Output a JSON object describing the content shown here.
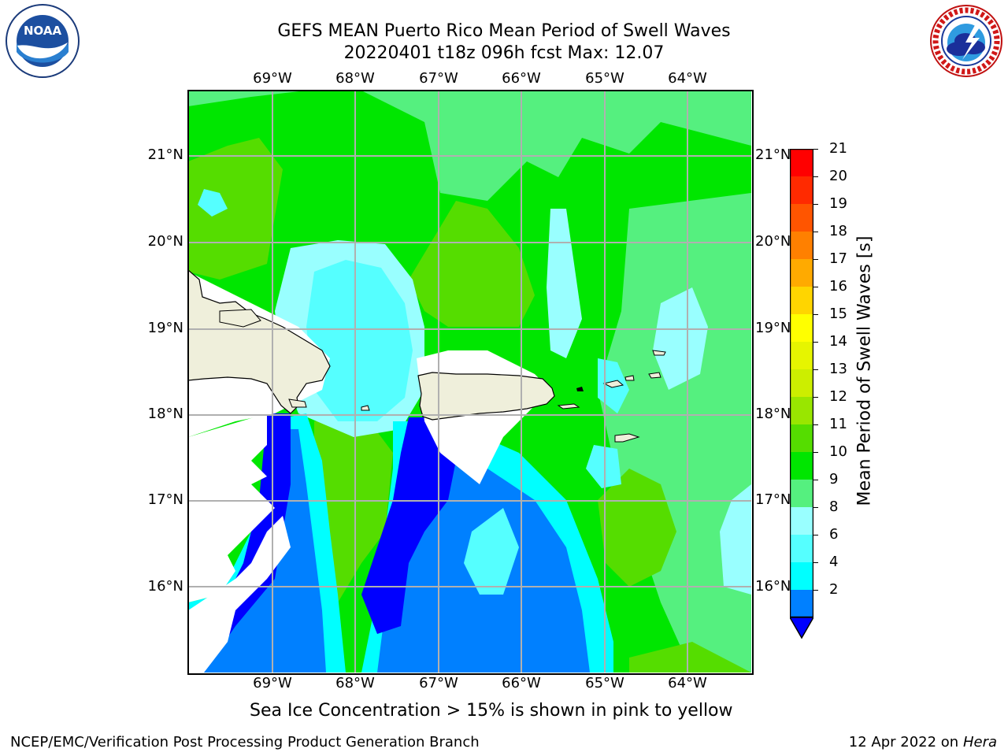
{
  "header": {
    "title_line1": "GEFS MEAN Puerto Rico Mean Period of Swell Waves",
    "title_line2": "20220401 t18z 096h fcst   Max: 12.07"
  },
  "logos": {
    "left": {
      "name": "noaa-logo",
      "text": "NOAA",
      "ring_text": "NATIONAL OCEANIC AND ATMOSPHERIC ADMINISTRATION · U.S. DEPARTMENT OF COMMERCE"
    },
    "right": {
      "name": "nws-logo",
      "ring_text": "NATIONAL WEATHER SERVICE"
    }
  },
  "map": {
    "lon_labels": [
      "69°W",
      "68°W",
      "67°W",
      "66°W",
      "65°W",
      "64°W"
    ],
    "lat_labels": [
      "21°N",
      "20°N",
      "19°N",
      "18°N",
      "17°N",
      "16°N"
    ],
    "lon_range": [
      -70.0,
      -63.25
    ],
    "lat_range": [
      15.0,
      21.75
    ],
    "grid": true,
    "land_color": "#efefdb",
    "masked_color": "#ffffff"
  },
  "colorbar": {
    "label": "Mean Period of Swell Waves [s]",
    "ticks": [
      "21",
      "20",
      "19",
      "18",
      "17",
      "16",
      "15",
      "14",
      "13",
      "12",
      "11",
      "10",
      "9",
      "8",
      "6",
      "4",
      "2"
    ],
    "colors": [
      "#ff0000",
      "#ff2a00",
      "#ff5500",
      "#ff8000",
      "#ffaa00",
      "#ffd500",
      "#ffff00",
      "#e6f500",
      "#ccee00",
      "#99e600",
      "#55dd00",
      "#00e600",
      "#55f07f",
      "#99ffff",
      "#55ffff",
      "#00ffff",
      "#0080ff"
    ],
    "under_color": "#0000ff"
  },
  "annotation": "Sea Ice Concentration > 15% is shown in pink to yellow",
  "footer": {
    "left": "NCEP/EMC/Verification Post Processing Product Generation Branch",
    "date": "12 Apr 2022 on ",
    "host": "Hera"
  }
}
